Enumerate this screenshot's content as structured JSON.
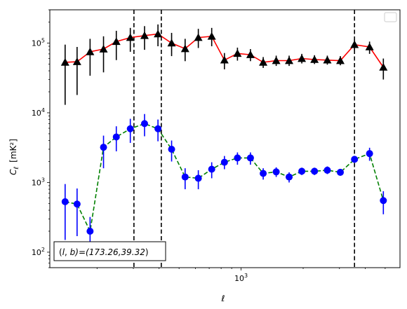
{
  "chart_data": {
    "type": "line",
    "xlabel": "ℓ",
    "ylabel_main": "C",
    "ylabel_sub": "ℓ",
    "ylabel_unit": "[mK²]",
    "xscale": "log",
    "yscale": "log",
    "xlim": [
      118,
      5900
    ],
    "ylim": [
      60,
      300000
    ],
    "x_tick_labels": [
      {
        "value": 1000,
        "base": "10",
        "exp": "3"
      }
    ],
    "y_tick_labels": [
      {
        "value": 100,
        "base": "10",
        "exp": "2"
      },
      {
        "value": 1000,
        "base": "10",
        "exp": "3"
      },
      {
        "value": 10000,
        "base": "10",
        "exp": "4"
      },
      {
        "value": 100000,
        "base": "10",
        "exp": "5"
      }
    ],
    "legend": "top-right",
    "grid": false,
    "vlines": [
      302,
      410,
      3550
    ],
    "annotation": "(l, b)=(173.26,39.32)",
    "series": [
      {
        "color": "#ff0000",
        "marker": "triangle",
        "marker_color": "#000000",
        "line_style": "solid",
        "points": [
          {
            "x": 140,
            "y": 53000,
            "lo": 13000,
            "hi": 95000
          },
          {
            "x": 160,
            "y": 54000,
            "lo": 18000,
            "hi": 88000
          },
          {
            "x": 185,
            "y": 75000,
            "lo": 34000,
            "hi": 115000
          },
          {
            "x": 215,
            "y": 82000,
            "lo": 38000,
            "hi": 125000
          },
          {
            "x": 248,
            "y": 105000,
            "lo": 57000,
            "hi": 150000
          },
          {
            "x": 290,
            "y": 120000,
            "lo": 75000,
            "hi": 165000
          },
          {
            "x": 340,
            "y": 128000,
            "lo": 80000,
            "hi": 175000
          },
          {
            "x": 395,
            "y": 135000,
            "lo": 90000,
            "hi": 185000
          },
          {
            "x": 460,
            "y": 100000,
            "lo": 65000,
            "hi": 140000
          },
          {
            "x": 535,
            "y": 83000,
            "lo": 55000,
            "hi": 115000
          },
          {
            "x": 620,
            "y": 120000,
            "lo": 85000,
            "hi": 160000
          },
          {
            "x": 720,
            "y": 125000,
            "lo": 90000,
            "hi": 165000
          },
          {
            "x": 830,
            "y": 57000,
            "lo": 42000,
            "hi": 72000
          },
          {
            "x": 960,
            "y": 71000,
            "lo": 56000,
            "hi": 86000
          },
          {
            "x": 1110,
            "y": 68000,
            "lo": 55000,
            "hi": 82000
          },
          {
            "x": 1280,
            "y": 53000,
            "lo": 44000,
            "hi": 63000
          },
          {
            "x": 1480,
            "y": 56000,
            "lo": 47000,
            "hi": 66000
          },
          {
            "x": 1710,
            "y": 56000,
            "lo": 47000,
            "hi": 66000
          },
          {
            "x": 1970,
            "y": 60000,
            "lo": 51000,
            "hi": 70000
          },
          {
            "x": 2270,
            "y": 58000,
            "lo": 50000,
            "hi": 67000
          },
          {
            "x": 2620,
            "y": 57000,
            "lo": 49000,
            "hi": 66000
          },
          {
            "x": 3030,
            "y": 56000,
            "lo": 48000,
            "hi": 65000
          },
          {
            "x": 3550,
            "y": 95000,
            "lo": 78000,
            "hi": 113000
          },
          {
            "x": 4200,
            "y": 88000,
            "lo": 70000,
            "hi": 105000
          },
          {
            "x": 4900,
            "y": 45000,
            "lo": 30000,
            "hi": 60000
          }
        ]
      },
      {
        "color": "#008000",
        "marker": "circle",
        "marker_color": "#0000ff",
        "line_style": "dashed",
        "points": [
          {
            "x": 140,
            "y": 530,
            "lo": 150,
            "hi": 950
          },
          {
            "x": 160,
            "y": 490,
            "lo": 170,
            "hi": 820
          },
          {
            "x": 185,
            "y": 200,
            "lo": 120,
            "hi": 320
          },
          {
            "x": 215,
            "y": 3200,
            "lo": 1600,
            "hi": 4700
          },
          {
            "x": 248,
            "y": 4500,
            "lo": 2800,
            "hi": 6400
          },
          {
            "x": 290,
            "y": 5900,
            "lo": 3700,
            "hi": 8200
          },
          {
            "x": 340,
            "y": 7000,
            "lo": 4600,
            "hi": 9600
          },
          {
            "x": 395,
            "y": 5900,
            "lo": 3900,
            "hi": 8000
          },
          {
            "x": 460,
            "y": 3000,
            "lo": 2000,
            "hi": 4000
          },
          {
            "x": 535,
            "y": 1200,
            "lo": 800,
            "hi": 1600
          },
          {
            "x": 620,
            "y": 1150,
            "lo": 800,
            "hi": 1500
          },
          {
            "x": 720,
            "y": 1550,
            "lo": 1150,
            "hi": 1950
          },
          {
            "x": 830,
            "y": 1950,
            "lo": 1550,
            "hi": 2400
          },
          {
            "x": 960,
            "y": 2250,
            "lo": 1800,
            "hi": 2700
          },
          {
            "x": 1110,
            "y": 2250,
            "lo": 1800,
            "hi": 2700
          },
          {
            "x": 1280,
            "y": 1350,
            "lo": 1100,
            "hi": 1600
          },
          {
            "x": 1480,
            "y": 1420,
            "lo": 1200,
            "hi": 1650
          },
          {
            "x": 1710,
            "y": 1200,
            "lo": 1000,
            "hi": 1400
          },
          {
            "x": 1970,
            "y": 1450,
            "lo": 1280,
            "hi": 1630
          },
          {
            "x": 2270,
            "y": 1450,
            "lo": 1280,
            "hi": 1630
          },
          {
            "x": 2620,
            "y": 1500,
            "lo": 1320,
            "hi": 1700
          },
          {
            "x": 3030,
            "y": 1400,
            "lo": 1250,
            "hi": 1560
          },
          {
            "x": 3550,
            "y": 2150,
            "lo": 1950,
            "hi": 2350
          },
          {
            "x": 4200,
            "y": 2600,
            "lo": 2050,
            "hi": 3150
          },
          {
            "x": 4900,
            "y": 550,
            "lo": 350,
            "hi": 750
          }
        ]
      }
    ]
  }
}
